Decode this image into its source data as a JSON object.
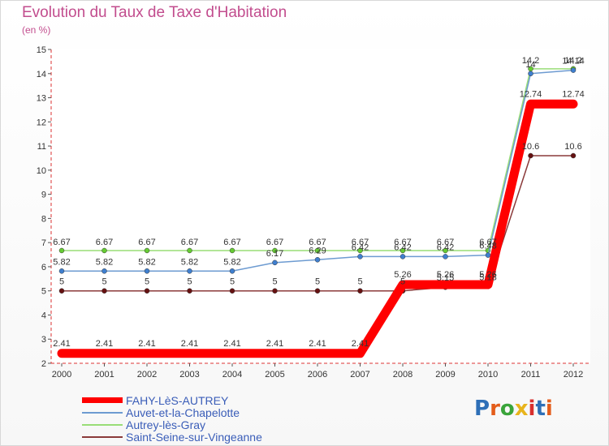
{
  "header": {
    "title": "Evolution du Taux de Taxe d'Habitation",
    "subtitle": "(en %)"
  },
  "logo": {
    "text": "Proxiti",
    "letter_colors": [
      "#2e6fb7",
      "#e45d1b",
      "#3aa43a",
      "#e8b41c",
      "#d8302e",
      "#2e6fb7",
      "#e45d1b"
    ]
  },
  "chart_data": {
    "type": "line",
    "title": "Evolution du Taux de Taxe d'Habitation",
    "subtitle": "(en %)",
    "xlabel": "",
    "ylabel": "",
    "x": [
      "2000",
      "2001",
      "2002",
      "2003",
      "2004",
      "2005",
      "2006",
      "2007",
      "2008",
      "2009",
      "2010",
      "2011",
      "2012"
    ],
    "ylim": [
      2,
      15
    ],
    "yticks": [
      "2",
      "3",
      "4",
      "5",
      "6",
      "7",
      "8",
      "9",
      "10",
      "11",
      "12",
      "13",
      "14",
      "15"
    ],
    "grid": false,
    "legend_position": "bottom-left",
    "series": [
      {
        "name": "FAHY-LèS-AUTREY",
        "color": "#ff0000",
        "values": [
          2.41,
          2.41,
          2.41,
          2.41,
          2.41,
          2.41,
          2.41,
          2.41,
          5.26,
          5.26,
          5.26,
          12.74,
          12.74
        ],
        "labels": [
          "2.41",
          "2.41",
          "2.41",
          "2.41",
          "2.41",
          "2.41",
          "2.41",
          "2.41",
          "5.26",
          "5.26",
          "5.26",
          "12.74",
          "12.74"
        ]
      },
      {
        "name": "Auvet-et-la-Chapelotte",
        "color": "#6d9bd1",
        "values": [
          5.82,
          5.82,
          5.82,
          5.82,
          5.82,
          6.17,
          6.29,
          6.42,
          6.42,
          6.42,
          6.48,
          14,
          14.14
        ],
        "labels": [
          "5.82",
          "5.82",
          "5.82",
          "5.82",
          "5.82",
          "6.17",
          "6.29",
          "6.42",
          "6.42",
          "6.42",
          "6.48",
          "14",
          "14.14"
        ]
      },
      {
        "name": "Autrey-lès-Gray",
        "color": "#99dd77",
        "values": [
          6.67,
          6.67,
          6.67,
          6.67,
          6.67,
          6.67,
          6.67,
          6.67,
          6.67,
          6.67,
          6.67,
          14.2,
          14.2
        ],
        "labels": [
          "6.67",
          "6.67",
          "6.67",
          "6.67",
          "6.67",
          "6.67",
          "6.67",
          "6.67",
          "6.67",
          "6.67",
          "6.67",
          "14.2",
          "14.2"
        ]
      },
      {
        "name": "Saint-Seine-sur-Vingeanne",
        "color": "#8b3a3a",
        "values": [
          5,
          5,
          5,
          5,
          5,
          5,
          5,
          5,
          5,
          5.15,
          5.18,
          10.6,
          10.6
        ],
        "labels": [
          "5",
          "5",
          "5",
          "5",
          "5",
          "5",
          "5",
          "5",
          "5",
          "5.15",
          "5.18",
          "10.6",
          "10.6"
        ]
      }
    ]
  }
}
